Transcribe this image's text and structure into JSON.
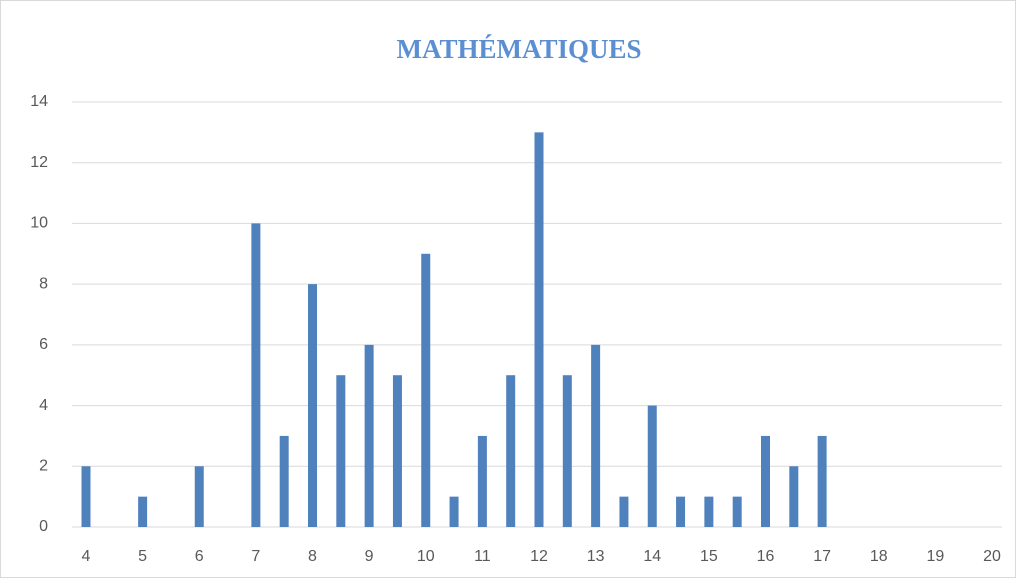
{
  "chart_data": {
    "type": "bar",
    "title": "MATHÉMATIQUES",
    "categories": [
      4,
      null,
      5,
      null,
      6,
      null,
      7,
      null,
      8,
      null,
      9,
      null,
      10,
      null,
      11,
      null,
      12,
      null,
      13,
      null,
      14,
      null,
      15,
      null,
      16,
      null,
      17,
      null,
      18,
      null,
      19,
      null,
      20
    ],
    "values": [
      2,
      0,
      1,
      0,
      2,
      0,
      10,
      3,
      8,
      5,
      6,
      5,
      9,
      1,
      3,
      5,
      13,
      5,
      6,
      1,
      4,
      1,
      1,
      1,
      3,
      2,
      3,
      0,
      0,
      0,
      0,
      0,
      0
    ],
    "color": "#4f81bd",
    "ylim": [
      0,
      14
    ],
    "yticks": [
      0,
      2,
      4,
      6,
      8,
      10,
      12,
      14
    ],
    "grid": true
  }
}
